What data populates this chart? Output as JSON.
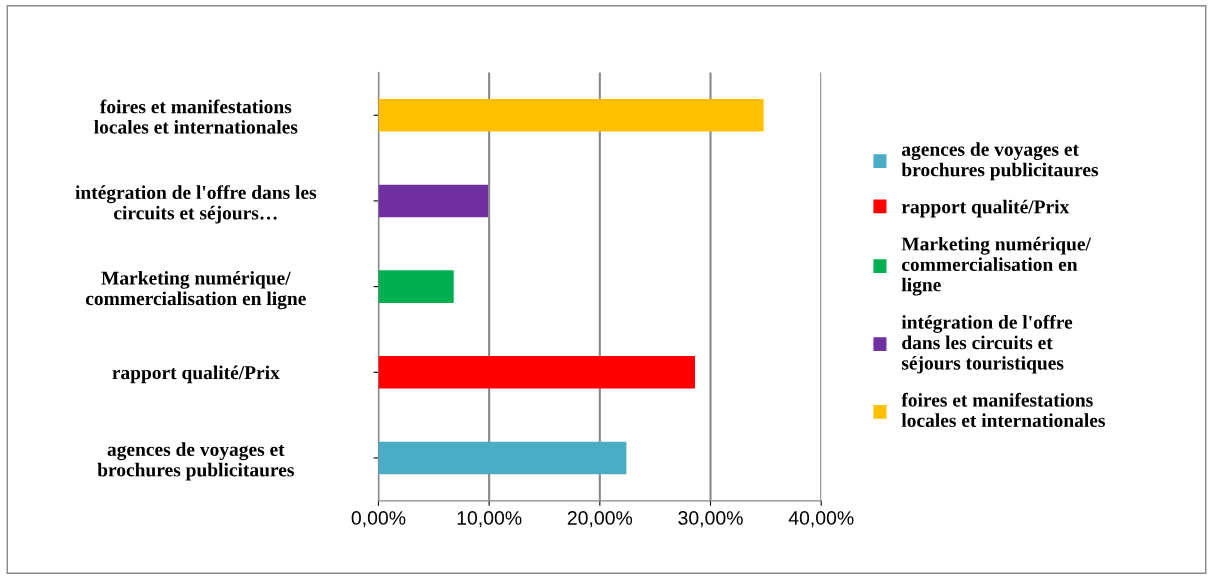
{
  "chart_data": {
    "type": "bar",
    "orientation": "horizontal",
    "categories": [
      "foires et manifestations\nlocales et internationales",
      "intégration de l'offre dans les\ncircuits et séjours…",
      "Marketing numérique/\ncommercialisation en ligne",
      "rapport qualité/Prix",
      "agences de voyages et\nbrochures publicitaures"
    ],
    "series": [
      {
        "name": "agences de voyages et\nbrochures publicitaures",
        "color": "#4bacc6",
        "values": [
          null,
          null,
          null,
          null,
          22.4
        ]
      },
      {
        "name": "rapport qualité/Prix",
        "color": "#ff0000",
        "values": [
          null,
          null,
          null,
          28.6,
          null
        ]
      },
      {
        "name": "Marketing numérique/\ncommercialisation en\nligne",
        "color": "#00b050",
        "values": [
          null,
          null,
          6.8,
          null,
          null
        ]
      },
      {
        "name": "intégration de l'offre\ndans les circuits et\nséjours touristiques",
        "color": "#7030a0",
        "values": [
          null,
          9.9,
          null,
          null,
          null
        ]
      },
      {
        "name": "foires et manifestations\nlocales et internationales",
        "color": "#ffc000",
        "values": [
          34.8,
          null,
          null,
          null,
          null
        ]
      }
    ],
    "xlim": [
      0,
      40
    ],
    "xticks": [
      {
        "value": 0,
        "label": "0,00%"
      },
      {
        "value": 10,
        "label": "10,00%"
      },
      {
        "value": 20,
        "label": "20,00%"
      },
      {
        "value": 30,
        "label": "30,00%"
      },
      {
        "value": 40,
        "label": "40,00%"
      }
    ],
    "grid": "x",
    "legend": "right"
  }
}
